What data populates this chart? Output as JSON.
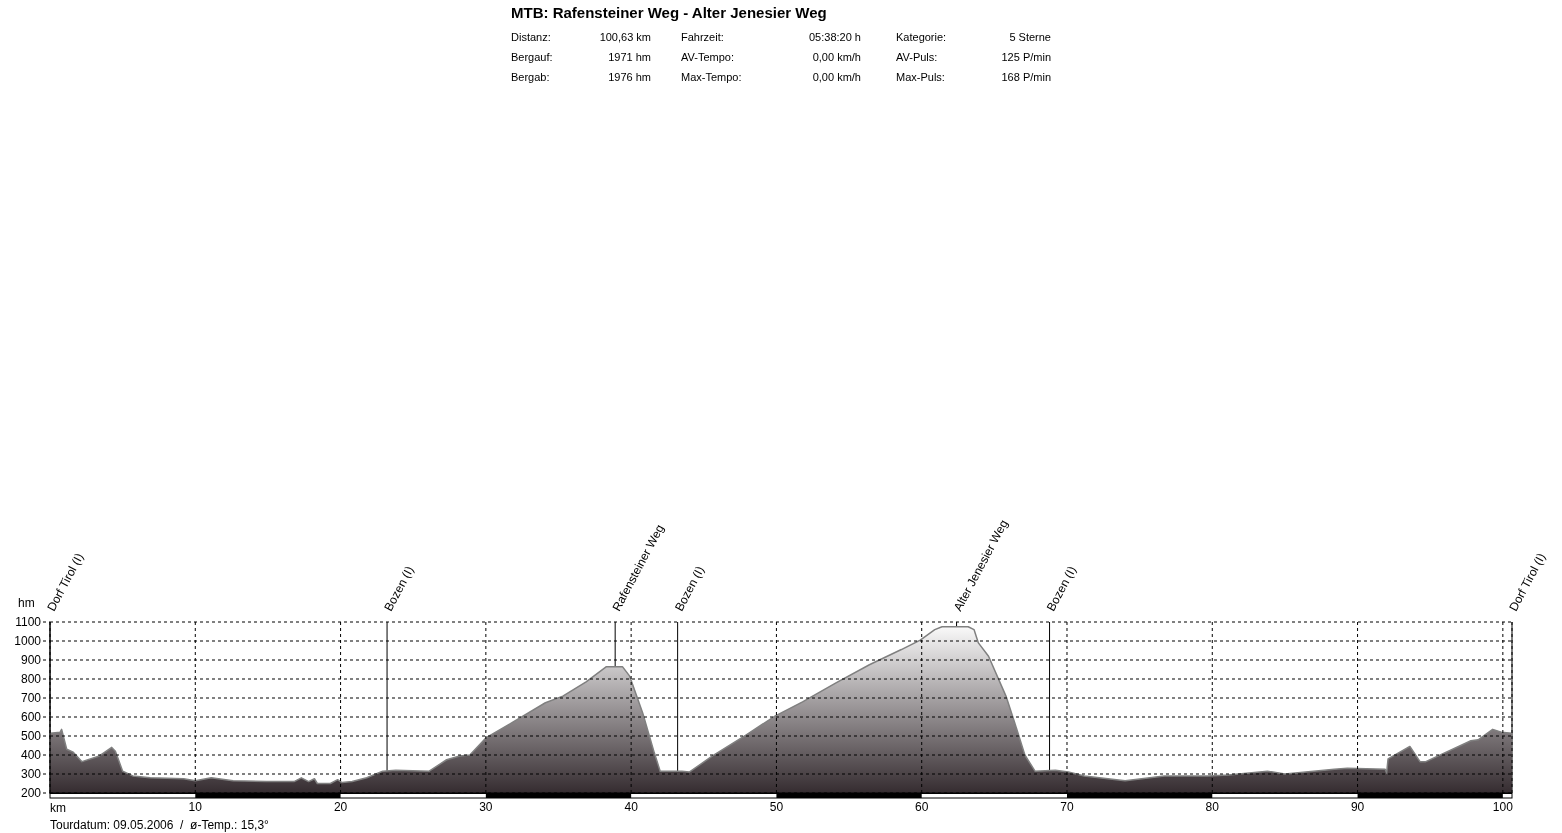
{
  "chart_data": {
    "type": "area",
    "title": "MTB: Rafensteiner Weg - Alter Jenesier Weg",
    "annotations": [
      "Distanz:",
      "100,63 km",
      "Fahrzeit:",
      "05:38:20 h",
      "Kategorie:",
      "5 Sterne",
      "Bergauf:",
      "1971 hm",
      "AV-Tempo:",
      "0,00 km/h",
      "AV-Puls:",
      "125 P/min",
      "Bergab:",
      "1976 hm",
      "Max-Tempo:",
      "0,00 km/h",
      "Max-Puls:",
      "168 P/min",
      "Tourdatum: 09.05.2006  /  ø-Temp.: 15,3°"
    ],
    "xlabel": "km",
    "ylabel": "hm",
    "x": [
      0,
      0.7,
      0.8,
      1.15,
      1.6,
      2.2,
      3.4,
      4.25,
      4.5,
      5.0,
      5.7,
      6.9,
      9.2,
      10.0,
      11.1,
      12.6,
      14.9,
      16.8,
      17.3,
      17.8,
      18.2,
      18.4,
      19.3,
      19.8,
      20.1,
      20.8,
      21.8,
      22.9,
      23.8,
      26.1,
      27.3,
      28.2,
      28.9,
      30.0,
      31.8,
      34.1,
      35.3,
      36.9,
      38.3,
      39.4,
      39.9,
      40.8,
      41.6,
      42.0,
      43.5,
      44.0,
      45.6,
      47.9,
      49.9,
      51.8,
      54.1,
      56.4,
      58.6,
      59.9,
      60.9,
      61.4,
      63.2,
      63.6,
      63.9,
      64.6,
      65.8,
      66.4,
      67.1,
      67.8,
      69.2,
      70.1,
      71.2,
      74.0,
      76.7,
      79.7,
      81.1,
      83.8,
      85.0,
      88.4,
      89.3,
      91.9,
      92.0,
      92.1,
      93.6,
      94.3,
      94.7,
      97.8,
      98.3,
      99.3,
      99.9,
      100.63
    ],
    "values": [
      515,
      520,
      535,
      430,
      415,
      365,
      395,
      440,
      420,
      315,
      290,
      280,
      275,
      265,
      280,
      265,
      260,
      260,
      280,
      260,
      275,
      250,
      250,
      270,
      255,
      260,
      280,
      315,
      320,
      315,
      375,
      395,
      400,
      490,
      570,
      675,
      710,
      785,
      865,
      865,
      815,
      620,
      410,
      315,
      315,
      310,
      395,
      505,
      605,
      680,
      780,
      875,
      955,
      1005,
      1060,
      1075,
      1075,
      1060,
      990,
      920,
      710,
      570,
      400,
      315,
      320,
      310,
      290,
      265,
      290,
      290,
      295,
      315,
      300,
      325,
      330,
      325,
      305,
      380,
      445,
      365,
      365,
      475,
      480,
      535,
      520,
      515
    ],
    "color": "#352c30",
    "xlim": [
      0,
      100.63
    ],
    "xticks": [
      10,
      20,
      30,
      40,
      50,
      60,
      70,
      80,
      90,
      100
    ],
    "ylim": [
      200,
      1100
    ],
    "yticks": [
      200,
      300,
      400,
      500,
      600,
      700,
      800,
      900,
      1000,
      1100
    ],
    "grid": true,
    "ref_lines": [
      {
        "axis": "x",
        "value": 0,
        "label": "Dorf Tirol (I)",
        "color": "#000000"
      },
      {
        "axis": "x",
        "value": 23.2,
        "label": "Bozen (I)",
        "color": "#000000"
      },
      {
        "axis": "x",
        "value": 38.9,
        "label": "Rafensteiner Weg",
        "color": "#000000"
      },
      {
        "axis": "x",
        "value": 43.2,
        "label": "Bozen (I)",
        "color": "#000000"
      },
      {
        "axis": "x",
        "value": 62.4,
        "label": "Alter Jenesier Weg",
        "color": "#000000"
      },
      {
        "axis": "x",
        "value": 68.8,
        "label": "Bozen (I)",
        "color": "#000000"
      },
      {
        "axis": "x",
        "value": 100.63,
        "label": "Dorf Tirol (I)",
        "color": "#000000"
      }
    ]
  }
}
